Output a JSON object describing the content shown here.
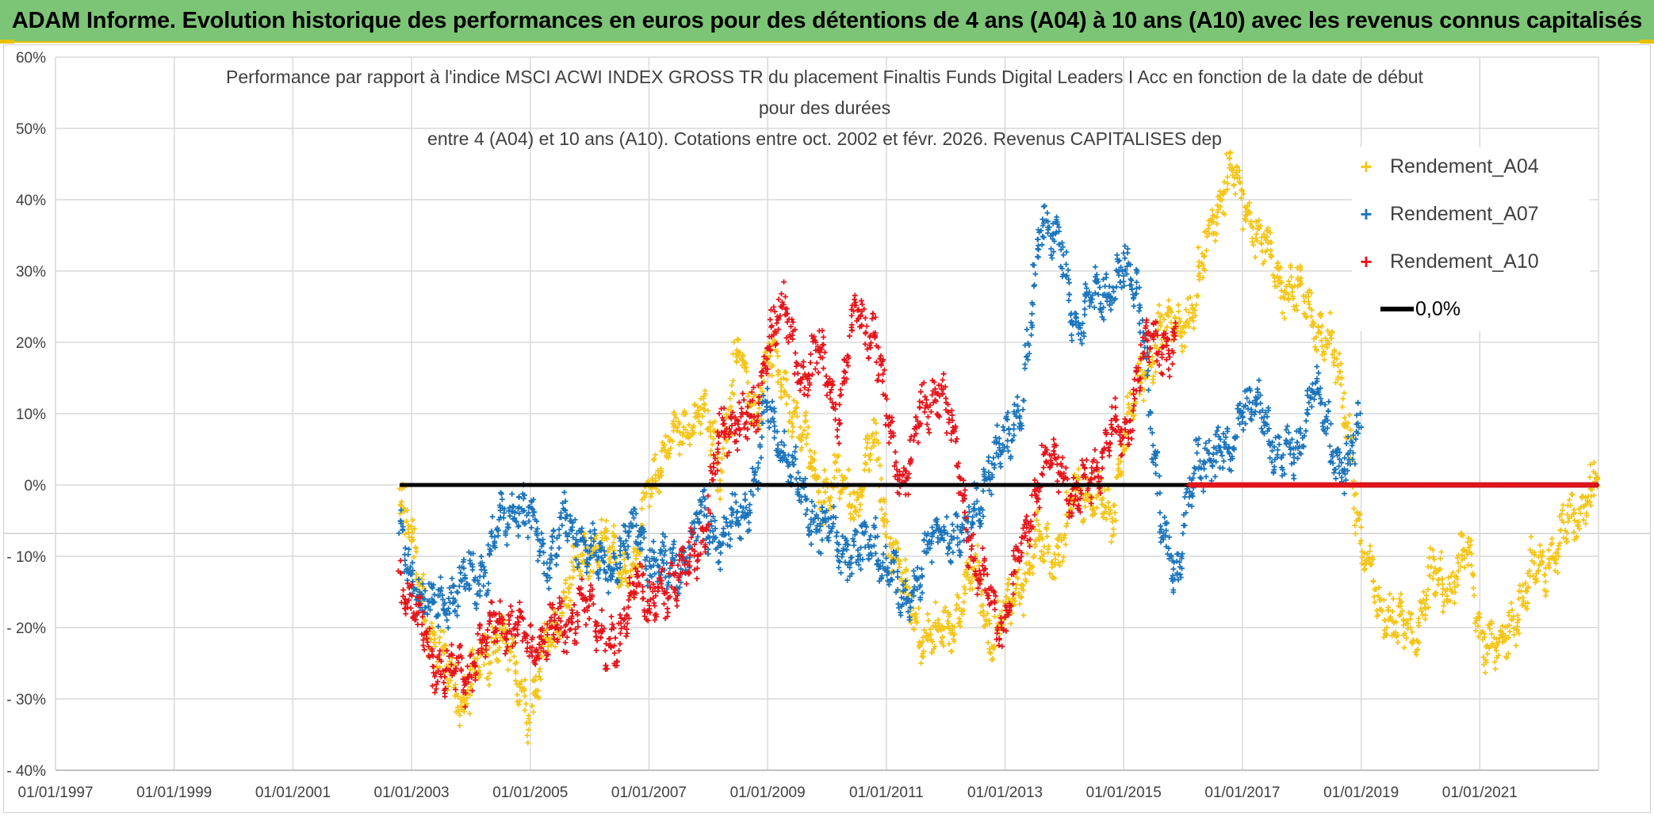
{
  "header": {
    "title": "ADAM Informe. Evolution historique des performances en euros pour des détentions de 4 ans (A04) à 10 ans (A10) avec les revenus connus capitalisés",
    "background_color": "#7cc576",
    "accent_color": "#e8c200"
  },
  "chart_data": {
    "type": "scatter",
    "title_lines": [
      "Performance par rapport à l'indice MSCI ACWI INDEX GROSS TR  du placement Finaltis Funds Digital Leaders I Acc en fonction de la date de début",
      "pour des durées",
      "entre 4 (A04) et 10 ans (A10). Cotations entre oct. 2002 et févr. 2026. Revenus CAPITALISES dep"
    ],
    "xlabel": "",
    "ylabel": "",
    "x_unit": "year",
    "xlim": [
      1997.0,
      2023.0
    ],
    "x_tick_values": [
      1997,
      1999,
      2001,
      2003,
      2005,
      2007,
      2009,
      2011,
      2013,
      2015,
      2017,
      2019,
      2021
    ],
    "x_tick_labels": [
      "01/01/1997",
      "01/01/1999",
      "01/01/2001",
      "01/01/2003",
      "01/01/2005",
      "01/01/2007",
      "01/01/2009",
      "01/01/2011",
      "01/01/2013",
      "01/01/2015",
      "01/01/2017",
      "01/01/2019",
      "01/01/2021"
    ],
    "ylim": [
      -40,
      60
    ],
    "y_tick_values": [
      60,
      50,
      40,
      30,
      20,
      10,
      0,
      -10,
      -20,
      -30,
      -40
    ],
    "y_tick_labels": [
      "60%",
      "50%",
      "40%",
      "30%",
      "20%",
      "10%",
      "0%",
      "- 10%",
      "- 20%",
      "- 30%",
      "- 40%"
    ],
    "grid": true,
    "legend_position": "right",
    "series": [
      {
        "name": "Rendement_A04",
        "color": "#f5c518",
        "marker": "+",
        "x": [
          2002.8,
          2003.0,
          2003.3,
          2003.6,
          2003.9,
          2004.2,
          2004.5,
          2004.8,
          2005.0,
          2005.3,
          2005.6,
          2005.9,
          2006.2,
          2006.5,
          2006.8,
          2007.0,
          2007.3,
          2007.6,
          2007.9,
          2008.2,
          2008.5,
          2008.8,
          2009.0,
          2009.3,
          2009.6,
          2009.9,
          2010.2,
          2010.5,
          2010.8,
          2011.0,
          2011.3,
          2011.6,
          2011.9,
          2012.2,
          2012.5,
          2012.8,
          2013.0,
          2013.3,
          2013.6,
          2013.9,
          2014.2,
          2014.5,
          2014.8,
          2015.0,
          2015.3,
          2015.6,
          2015.9,
          2016.2,
          2016.5,
          2016.8,
          2017.0,
          2017.3,
          2017.6,
          2017.9,
          2018.2,
          2018.5,
          2018.8,
          2019.0,
          2019.3,
          2019.6,
          2019.9,
          2020.2,
          2020.5,
          2020.8,
          2021.0,
          2021.3,
          2021.6,
          2021.9,
          2022.2,
          2022.5,
          2022.8,
          2023.0
        ],
        "values": [
          -2,
          -8,
          -20,
          -26,
          -30,
          -25,
          -20,
          -28,
          -32,
          -22,
          -16,
          -10,
          -8,
          -11,
          -12,
          0,
          5,
          8,
          10,
          3,
          18,
          10,
          18,
          14,
          6,
          -1,
          0,
          -2,
          6,
          -5,
          -15,
          -21,
          -21,
          -18,
          -12,
          -22,
          -18,
          -13,
          -8,
          -10,
          0,
          -2,
          -5,
          8,
          14,
          22,
          22,
          25,
          38,
          44,
          40,
          35,
          29,
          27,
          24,
          19,
          8,
          -10,
          -16,
          -20,
          -20,
          -13,
          -14,
          -9,
          -20,
          -24,
          -18,
          -12,
          -10,
          -6,
          -2,
          0
        ]
      },
      {
        "name": "Rendement_A07",
        "color": "#1b75bc",
        "marker": "+",
        "x": [
          2002.8,
          2003.0,
          2003.3,
          2003.6,
          2003.9,
          2004.2,
          2004.5,
          2004.8,
          2005.0,
          2005.3,
          2005.6,
          2005.9,
          2006.2,
          2006.5,
          2006.8,
          2007.0,
          2007.3,
          2007.6,
          2007.9,
          2008.2,
          2008.5,
          2008.8,
          2009.0,
          2009.3,
          2009.6,
          2009.9,
          2010.2,
          2010.5,
          2010.8,
          2011.0,
          2011.3,
          2011.6,
          2011.9,
          2012.2,
          2012.5,
          2012.8,
          2013.0,
          2013.3,
          2013.6,
          2013.9,
          2014.2,
          2014.5,
          2014.8,
          2015.0,
          2015.3,
          2015.6,
          2015.9,
          2016.2,
          2016.5,
          2016.8,
          2017.0,
          2017.3,
          2017.6,
          2017.9,
          2018.2,
          2018.5,
          2018.8,
          2019.0
        ],
        "values": [
          -8,
          -12,
          -18,
          -16,
          -14,
          -12,
          -6,
          -2,
          -6,
          -10,
          -5,
          -8,
          -12,
          -10,
          -6,
          -10,
          -12,
          -10,
          -4,
          -8,
          -5,
          0,
          12,
          4,
          -2,
          -6,
          -8,
          -10,
          -7,
          -12,
          -16,
          -12,
          -5,
          -9,
          -2,
          2,
          8,
          10,
          38,
          34,
          22,
          26,
          28,
          30,
          26,
          -5,
          -12,
          2,
          5,
          4,
          12,
          10,
          5,
          3,
          15,
          5,
          3,
          8
        ]
      },
      {
        "name": "Rendement_A10",
        "color": "#e8141b",
        "marker": "+",
        "x": [
          2002.8,
          2003.0,
          2003.3,
          2003.6,
          2003.9,
          2004.2,
          2004.5,
          2004.8,
          2005.0,
          2005.3,
          2005.6,
          2005.9,
          2006.2,
          2006.5,
          2006.8,
          2007.0,
          2007.3,
          2007.6,
          2007.9,
          2008.2,
          2008.5,
          2008.8,
          2009.0,
          2009.3,
          2009.6,
          2009.9,
          2010.2,
          2010.5,
          2010.8,
          2011.0,
          2011.3,
          2011.6,
          2011.9,
          2012.2,
          2012.5,
          2012.8,
          2013.0,
          2013.3,
          2013.6,
          2013.9,
          2014.2,
          2014.5,
          2014.8,
          2015.0,
          2015.3,
          2015.6,
          2015.9
        ],
        "values": [
          -12,
          -16,
          -24,
          -26,
          -27,
          -22,
          -18,
          -21,
          -23,
          -21,
          -19,
          -17,
          -20,
          -24,
          -10,
          -18,
          -14,
          -12,
          -8,
          6,
          10,
          8,
          22,
          24,
          15,
          18,
          10,
          25,
          21,
          10,
          0,
          10,
          14,
          4,
          -12,
          -16,
          -20,
          -8,
          2,
          4,
          -3,
          2,
          8,
          6,
          18,
          20,
          19
        ]
      },
      {
        "name": "0,0%",
        "color": "#000000",
        "type": "line",
        "x": [
          2002.8,
          2023.0
        ],
        "values": [
          0,
          0
        ]
      }
    ],
    "flat_zero_markers": [
      {
        "series": "Rendement_A10",
        "x_range": [
          2016.1,
          2023.0
        ],
        "value": 0
      },
      {
        "series": "Rendement_A07",
        "x_range": [
          2019.1,
          2023.0
        ],
        "value": 0
      }
    ]
  }
}
